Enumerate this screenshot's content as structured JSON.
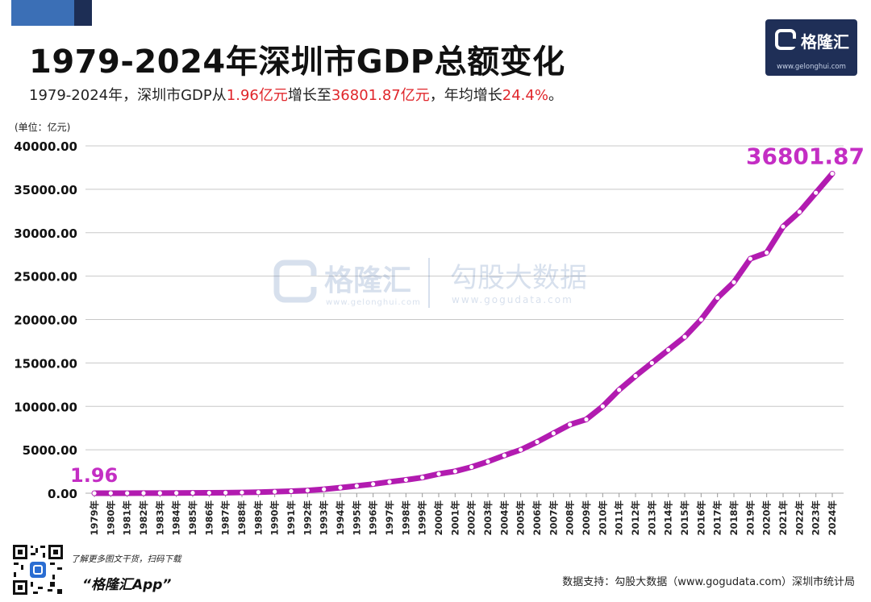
{
  "header": {
    "title": "1979-2024年深圳市GDP总额变化",
    "subtitle_parts": [
      {
        "text": "1979-2024年，深圳市GDP从",
        "highlight": false
      },
      {
        "text": "1.96亿元",
        "highlight": true
      },
      {
        "text": "增长至",
        "highlight": false
      },
      {
        "text": "36801.87亿元",
        "highlight": true
      },
      {
        "text": "，年均增长",
        "highlight": false
      },
      {
        "text": "24.4%",
        "highlight": true
      },
      {
        "text": "。",
        "highlight": false
      }
    ]
  },
  "logo": {
    "name": "格隆汇",
    "url": "www.gelonghui.com"
  },
  "watermark": {
    "brand1": "格隆汇",
    "brand1_url": "www.gelonghui.com",
    "brand2": "勾股大数据",
    "brand2_url": "www.gogudata.com"
  },
  "footer": {
    "left_text": "了解更多图文干货，扫码下载",
    "app_name": "“格隆汇App”",
    "source": "数据支持：勾股大数据（www.gogudata.com）深圳市统计局"
  },
  "colors": {
    "line": "#b21bb0",
    "label": "#c42ec4",
    "grid": "#c8c8c8",
    "highlight": "#e0262b",
    "logo_bg": "#1f2f57"
  },
  "chart_data": {
    "type": "line",
    "title": "1979-2024年深圳市GDP总额变化",
    "ylabel": "(单位：亿元)",
    "xlabel": "",
    "ylim": [
      0,
      40000
    ],
    "yticks": [
      "0.00",
      "5000.00",
      "10000.00",
      "15000.00",
      "20000.00",
      "25000.00",
      "30000.00",
      "35000.00",
      "40000.00"
    ],
    "categories": [
      "1979年",
      "1980年",
      "1981年",
      "1982年",
      "1983年",
      "1984年",
      "1985年",
      "1986年",
      "1987年",
      "1988年",
      "1989年",
      "1990年",
      "1991年",
      "1992年",
      "1993年",
      "1994年",
      "1995年",
      "1996年",
      "1997年",
      "1998年",
      "1999年",
      "2000年",
      "2001年",
      "2002年",
      "2003年",
      "2004年",
      "2005年",
      "2006年",
      "2007年",
      "2008年",
      "2009年",
      "2010年",
      "2011年",
      "2012年",
      "2013年",
      "2014年",
      "2015年",
      "2016年",
      "2017年",
      "2018年",
      "2019年",
      "2020年",
      "2021年",
      "2022年",
      "2023年",
      "2024年"
    ],
    "series": [
      {
        "name": "深圳市GDP",
        "values": [
          1.96,
          2.7,
          4.96,
          8.26,
          13.12,
          23.42,
          39.02,
          41.65,
          55.9,
          86.98,
          115.66,
          171.67,
          236.66,
          317.32,
          453.14,
          634.67,
          842.48,
          1050.51,
          1302.3,
          1534.73,
          1804.02,
          2219.2,
          2522.95,
          3017.0,
          3640.0,
          4350.0,
          5000.0,
          5900.0,
          6900.0,
          7900.0,
          8500.0,
          10000.0,
          11900.0,
          13500.0,
          15000.0,
          16500.0,
          18000.0,
          20000.0,
          22500.0,
          24300.0,
          27000.0,
          27700.0,
          30700.0,
          32400.0,
          34600.0,
          36801.87
        ]
      }
    ],
    "data_labels": [
      {
        "index": 0,
        "text": "1.96"
      },
      {
        "index": 45,
        "text": "36801.87"
      }
    ]
  }
}
